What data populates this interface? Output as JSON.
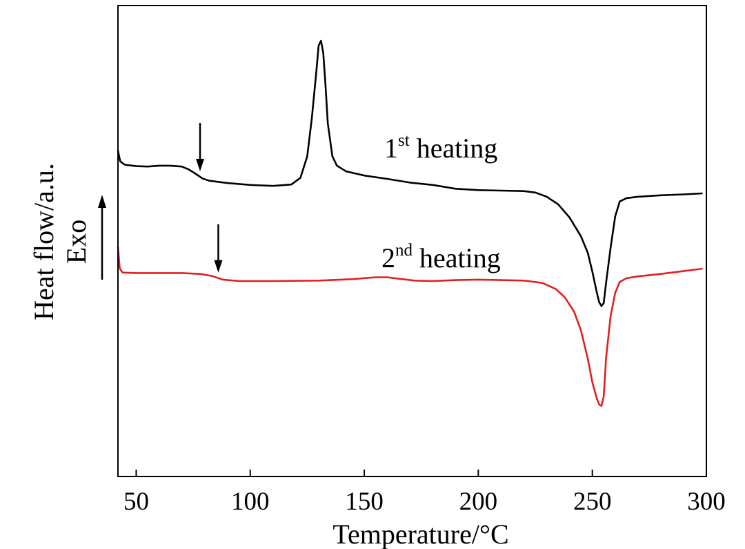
{
  "chart_data": {
    "type": "line",
    "title": "",
    "xlabel": "Temperature/°C",
    "ylabel": "Heat flow/a.u.",
    "y_direction_label": "Exo",
    "xlim": [
      42,
      300
    ],
    "ylim": [
      0,
      100
    ],
    "x_ticks": [
      "50",
      "100",
      "150",
      "200",
      "250",
      "300"
    ],
    "y_ticks": [],
    "grid": false,
    "series": [
      {
        "name": "1st heating",
        "label_main": "1",
        "label_sup": "st",
        "label_rest": " heating",
        "color": "#000000",
        "points": [
          [
            42,
            69.2
          ],
          [
            43,
            66.9
          ],
          [
            45,
            66.2
          ],
          [
            50,
            65.9
          ],
          [
            55,
            65.8
          ],
          [
            60,
            66.0
          ],
          [
            65,
            66.0
          ],
          [
            70,
            65.8
          ],
          [
            73,
            65.2
          ],
          [
            76,
            64.3
          ],
          [
            79,
            63.3
          ],
          [
            82,
            62.8
          ],
          [
            90,
            62.3
          ],
          [
            100,
            61.9
          ],
          [
            110,
            61.7
          ],
          [
            118,
            62.0
          ],
          [
            122,
            63.4
          ],
          [
            125,
            68.0
          ],
          [
            127,
            76.0
          ],
          [
            129,
            86.0
          ],
          [
            130,
            91.5
          ],
          [
            131,
            92.5
          ],
          [
            132,
            90.0
          ],
          [
            133,
            83.0
          ],
          [
            134,
            75.0
          ],
          [
            136,
            68.0
          ],
          [
            138,
            66.0
          ],
          [
            142,
            64.8
          ],
          [
            150,
            63.9
          ],
          [
            160,
            63.2
          ],
          [
            170,
            62.4
          ],
          [
            180,
            61.9
          ],
          [
            190,
            61.1
          ],
          [
            200,
            60.8
          ],
          [
            210,
            60.7
          ],
          [
            220,
            60.6
          ],
          [
            225,
            60.3
          ],
          [
            230,
            59.4
          ],
          [
            235,
            57.8
          ],
          [
            240,
            55.0
          ],
          [
            245,
            51.0
          ],
          [
            248,
            47.5
          ],
          [
            250,
            43.5
          ],
          [
            252,
            39.0
          ],
          [
            253,
            37.0
          ],
          [
            254,
            36.2
          ],
          [
            255,
            36.8
          ],
          [
            256,
            41.0
          ],
          [
            258,
            48.5
          ],
          [
            260,
            55.2
          ],
          [
            262,
            58.4
          ],
          [
            265,
            59.1
          ],
          [
            270,
            59.4
          ],
          [
            280,
            59.7
          ],
          [
            290,
            59.9
          ],
          [
            298,
            60.1
          ]
        ],
        "annotation_arrow_x": 78
      },
      {
        "name": "2nd heating",
        "label_main": "2",
        "label_sup": "nd",
        "label_rest": " heating",
        "color": "#e11f1f",
        "points": [
          [
            42,
            48.8
          ],
          [
            42.8,
            44.2
          ],
          [
            44,
            43.3
          ],
          [
            50,
            43.2
          ],
          [
            60,
            43.2
          ],
          [
            70,
            43.2
          ],
          [
            78,
            43.0
          ],
          [
            83,
            42.6
          ],
          [
            88,
            41.8
          ],
          [
            95,
            41.5
          ],
          [
            110,
            41.5
          ],
          [
            130,
            41.6
          ],
          [
            145,
            41.9
          ],
          [
            155,
            42.3
          ],
          [
            160,
            42.3
          ],
          [
            165,
            42.0
          ],
          [
            172,
            41.6
          ],
          [
            180,
            41.5
          ],
          [
            190,
            41.7
          ],
          [
            200,
            41.8
          ],
          [
            210,
            41.7
          ],
          [
            220,
            41.6
          ],
          [
            228,
            41.1
          ],
          [
            234,
            39.8
          ],
          [
            238,
            38.0
          ],
          [
            242,
            35.0
          ],
          [
            245,
            31.0
          ],
          [
            248,
            25.0
          ],
          [
            250,
            20.0
          ],
          [
            252,
            16.5
          ],
          [
            253,
            15.3
          ],
          [
            254,
            15.0
          ],
          [
            255,
            17.0
          ],
          [
            256,
            25.0
          ],
          [
            258,
            34.0
          ],
          [
            260,
            39.0
          ],
          [
            262,
            41.3
          ],
          [
            265,
            42.1
          ],
          [
            270,
            42.5
          ],
          [
            280,
            43.0
          ],
          [
            290,
            43.6
          ],
          [
            298,
            44.1
          ]
        ],
        "annotation_arrow_x": 86
      }
    ]
  }
}
